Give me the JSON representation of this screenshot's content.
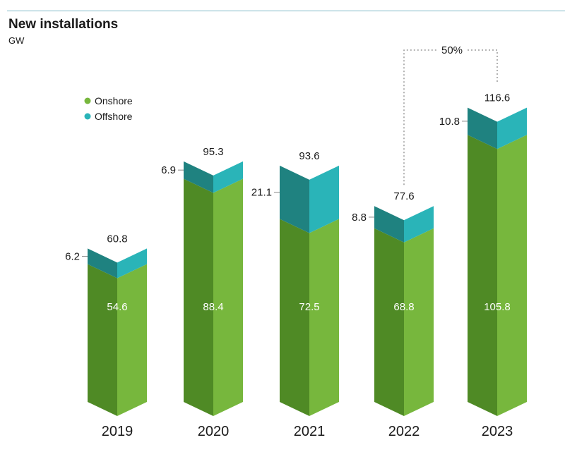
{
  "title": "New installations",
  "unit": "GW",
  "chart_data": {
    "type": "bar",
    "stacked": true,
    "title": "New installations",
    "ylabel": "GW",
    "categories": [
      "2019",
      "2020",
      "2021",
      "2022",
      "2023"
    ],
    "series": [
      {
        "name": "Onshore",
        "color": "#77b73d",
        "values": [
          54.6,
          88.4,
          72.5,
          68.8,
          105.8
        ]
      },
      {
        "name": "Offshore",
        "color": "#2ab4b8",
        "values": [
          6.2,
          6.9,
          21.1,
          8.8,
          10.8
        ]
      }
    ],
    "totals": [
      60.8,
      95.3,
      93.6,
      77.6,
      116.6
    ],
    "onshore_labels": [
      "54.6",
      "88.4",
      "72.5",
      "68.8",
      "105.8"
    ],
    "offshore_labels": [
      "6.2",
      "6.9",
      "21.1",
      "8.8",
      "10.8"
    ],
    "total_labels": [
      "60.8",
      "95.3",
      "93.6",
      "77.6",
      "116.6"
    ],
    "legend": [
      "Onshore",
      "Offshore"
    ],
    "annotation": {
      "from": "2022",
      "to": "2023",
      "label": "50%"
    }
  }
}
